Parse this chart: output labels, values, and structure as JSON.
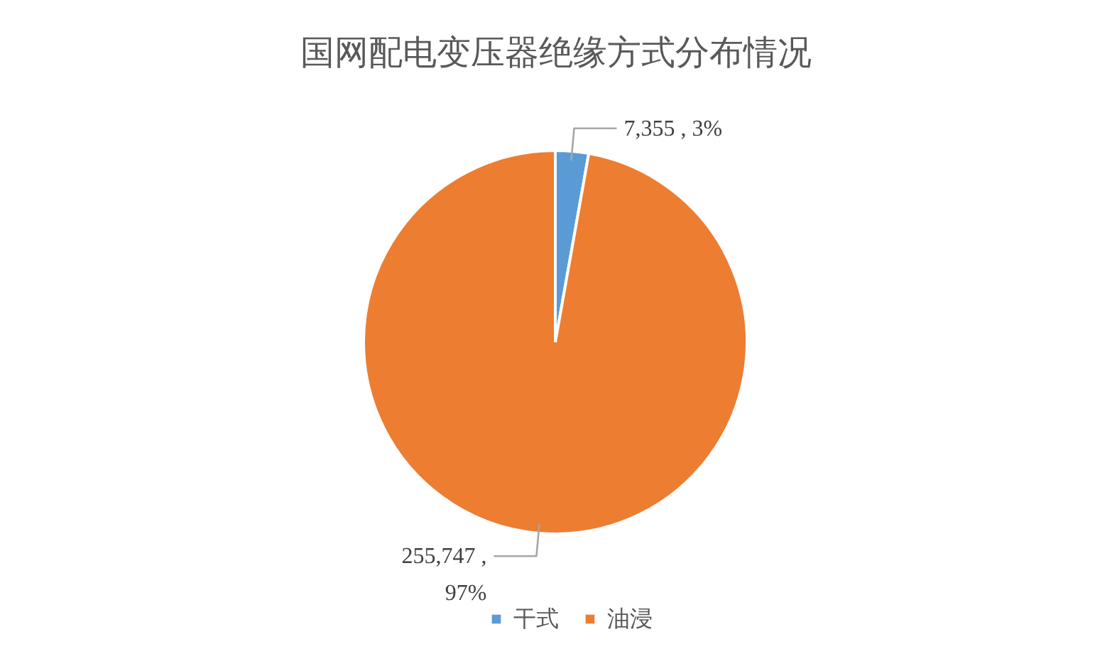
{
  "chart_data": {
    "type": "pie",
    "title": "国网配电变压器绝缘方式分布情况",
    "categories": [
      "干式",
      "油浸"
    ],
    "values": [
      7355,
      255747
    ],
    "colors": [
      "#5b9bd5",
      "#ed7d31"
    ],
    "value_labels": [
      "7,355 , 3%",
      "255,747 ,\n97%"
    ],
    "legend": "bottom"
  }
}
